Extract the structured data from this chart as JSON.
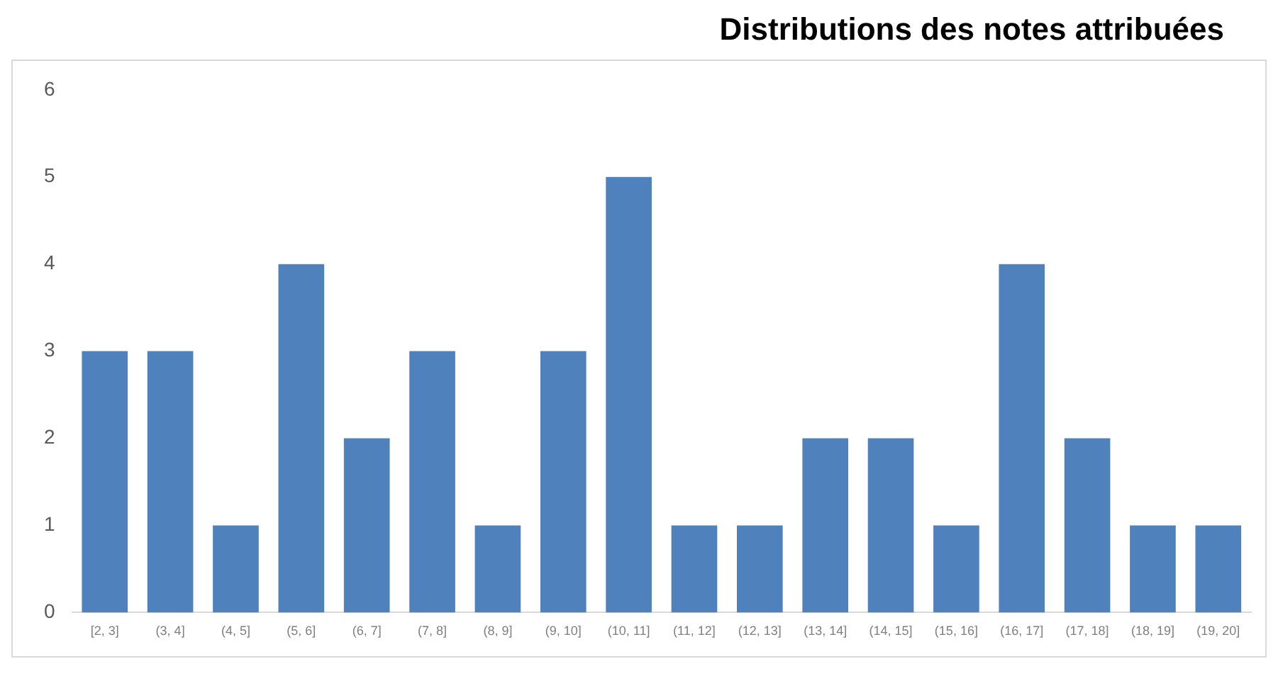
{
  "chart_data": {
    "type": "bar",
    "title": "Distributions des notes attribuées",
    "categories": [
      "[2, 3]",
      "(3, 4]",
      "(4, 5]",
      "(5, 6]",
      "(6, 7]",
      "(7, 8]",
      "(8, 9]",
      "(9, 10]",
      "(10, 11]",
      "(11, 12]",
      "(12, 13]",
      "(13, 14]",
      "(14, 15]",
      "(15, 16]",
      "(16, 17]",
      "(17, 18]",
      "(18, 19]",
      "(19, 20]"
    ],
    "values": [
      3,
      3,
      1,
      4,
      2,
      3,
      1,
      3,
      5,
      1,
      1,
      2,
      2,
      1,
      4,
      2,
      1,
      1
    ],
    "color": "#4f81bd",
    "ylim": [
      0,
      6
    ],
    "yticks": [
      0,
      1,
      2,
      3,
      4,
      5,
      6
    ],
    "grid": false,
    "legend": false
  }
}
